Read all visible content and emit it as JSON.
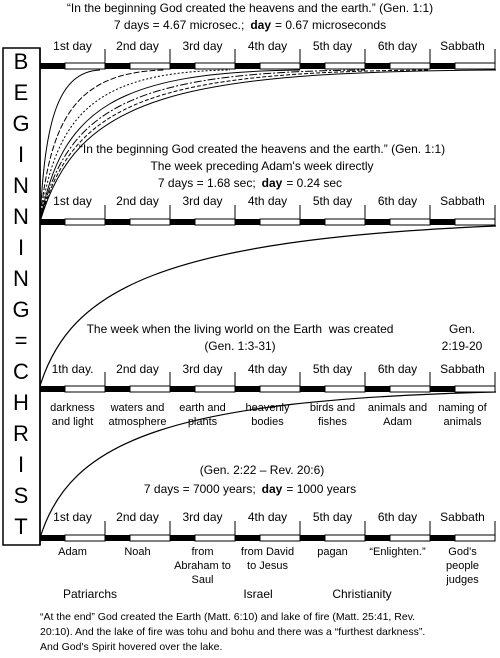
{
  "side_label": [
    "B",
    "E",
    "G",
    "I",
    "N",
    "N",
    "I",
    "N",
    "G",
    "=",
    "C",
    "H",
    "R",
    "I",
    "S",
    "T"
  ],
  "sections": [
    {
      "header": [
        "“In the beginning God created the heavens and the earth.” (Gen. 1:1)"
      ],
      "formula": {
        "pre": "7 days = 4.67 microsec.;",
        "bold": "day",
        "post": "= 0.67 microseconds"
      },
      "days": [
        "1st day",
        "2nd day",
        "3rd day",
        "4th day",
        "5th day",
        "6th day",
        "Sabbath"
      ]
    },
    {
      "header": [
        "“In the beginning God created the heavens and the earth.” (Gen. 1:1)",
        "The week preceding Adam's week directly"
      ],
      "formula": {
        "pre": "7 days = 1.68 sec;",
        "bold": "day",
        "post": "= 0.24 sec"
      },
      "days": [
        "1st day",
        "2nd day",
        "3rd day",
        "4th day",
        "5th day",
        "6th day",
        "Sabbath"
      ]
    },
    {
      "header": [
        "The week when the living world on the Earth  was created",
        "(Gen. 1:3-31)"
      ],
      "side_note": [
        "Gen.",
        "2:19-20"
      ],
      "days": [
        "1th day.",
        "2nd day",
        "3rd day",
        "4th day",
        "5th day",
        "6th day",
        "Sabbath"
      ],
      "notes": [
        [
          "darkness",
          "and light"
        ],
        [
          "waters and",
          "atmosphere"
        ],
        [
          "earth and",
          "plants"
        ],
        [
          "heavenly",
          "bodies"
        ],
        [
          "birds and",
          "fishes"
        ],
        [
          "animals and",
          "Adam"
        ],
        [
          "naming of",
          "animals"
        ]
      ]
    },
    {
      "header": [
        "(Gen. 2:22 – Rev. 20:6)"
      ],
      "formula": {
        "pre": "7 days = 7000 years;",
        "bold": "day",
        "post": "= 1000 years"
      },
      "days": [
        "1st day",
        "2nd day",
        "3rd day",
        "4th day",
        "5th day",
        "6th day",
        "Sabbath"
      ],
      "notes": [
        [
          "Adam"
        ],
        [
          "Noah"
        ],
        [
          "from",
          "Abraham to",
          "Saul"
        ],
        [
          "from David",
          "to Jesus"
        ],
        [
          "pagan"
        ],
        [
          "“Enlighten.”"
        ],
        [
          "God's",
          "people",
          "judges"
        ]
      ]
    }
  ],
  "eras": [
    "Patriarchs",
    "Israel",
    "Christianity"
  ],
  "footer": [
    "“At the end” God created the Earth (Matt. 6:10) and lake of fire (Matt. 25:41, Rev.",
    "20:10). And the lake of fire was tohu and bohu and there was a “furthest darkness”.",
    "And God's Spirit hovered over the lake."
  ]
}
